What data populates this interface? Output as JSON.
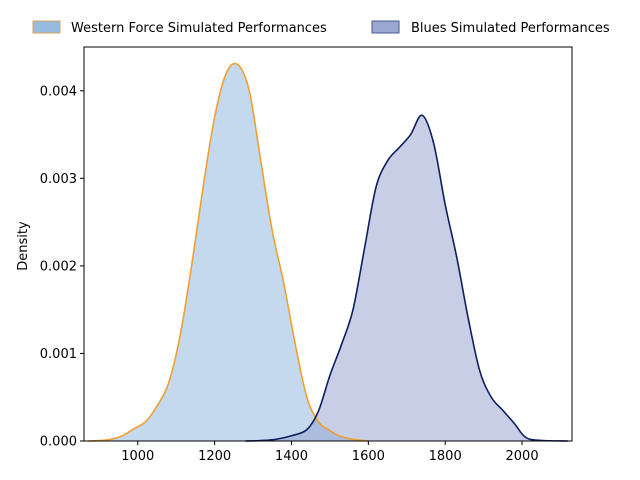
{
  "chart_data": {
    "type": "area",
    "title": "",
    "xlabel": "",
    "ylabel": "Density",
    "xlim": [
      860,
      2130
    ],
    "ylim": [
      0,
      0.0045
    ],
    "xticks": [
      1000,
      1200,
      1400,
      1600,
      1800,
      2000
    ],
    "yticks": [
      0.0,
      0.001,
      0.002,
      0.003,
      0.004
    ],
    "xtick_labels": [
      "1000",
      "1200",
      "1400",
      "1600",
      "1800",
      "2000"
    ],
    "ytick_labels": [
      "0.000",
      "0.001",
      "0.002",
      "0.003",
      "0.004"
    ],
    "grid": false,
    "legend_placement": "top",
    "series": [
      {
        "name": "Western Force Simulated Performances",
        "fill_color": "#8cb3dd",
        "line_color": "#f0a030",
        "points": [
          [
            870,
            0.0
          ],
          [
            900,
            5e-06
          ],
          [
            930,
            2e-05
          ],
          [
            960,
            6e-05
          ],
          [
            990,
            0.00014
          ],
          [
            1020,
            0.00022
          ],
          [
            1050,
            0.0004
          ],
          [
            1080,
            0.00066
          ],
          [
            1110,
            0.0012
          ],
          [
            1140,
            0.002
          ],
          [
            1170,
            0.0029
          ],
          [
            1200,
            0.0037
          ],
          [
            1230,
            0.0042
          ],
          [
            1260,
            0.0043
          ],
          [
            1290,
            0.004
          ],
          [
            1320,
            0.0032
          ],
          [
            1350,
            0.0024
          ],
          [
            1380,
            0.0018
          ],
          [
            1410,
            0.0011
          ],
          [
            1440,
            0.0005
          ],
          [
            1470,
            0.00022
          ],
          [
            1500,
            0.00012
          ],
          [
            1530,
            5e-05
          ],
          [
            1560,
            2e-05
          ],
          [
            1600,
            0.0
          ]
        ]
      },
      {
        "name": "Blues Simulated Performances",
        "fill_color": "#8f9dcc",
        "line_color": "#0d1f5e",
        "points": [
          [
            1280,
            0.0
          ],
          [
            1320,
            5e-06
          ],
          [
            1360,
            2e-05
          ],
          [
            1400,
            6e-05
          ],
          [
            1440,
            0.00013
          ],
          [
            1470,
            0.00034
          ],
          [
            1500,
            0.00075
          ],
          [
            1530,
            0.0011
          ],
          [
            1560,
            0.0015
          ],
          [
            1590,
            0.0022
          ],
          [
            1620,
            0.0029
          ],
          [
            1650,
            0.0032
          ],
          [
            1680,
            0.00335
          ],
          [
            1710,
            0.0035
          ],
          [
            1740,
            0.00372
          ],
          [
            1770,
            0.0034
          ],
          [
            1800,
            0.0027
          ],
          [
            1830,
            0.0021
          ],
          [
            1860,
            0.0014
          ],
          [
            1890,
            0.0008
          ],
          [
            1920,
            0.0005
          ],
          [
            1950,
            0.00035
          ],
          [
            1980,
            0.0002
          ],
          [
            2010,
            4e-05
          ],
          [
            2050,
            7e-06
          ],
          [
            2120,
            0.0
          ]
        ]
      }
    ]
  }
}
